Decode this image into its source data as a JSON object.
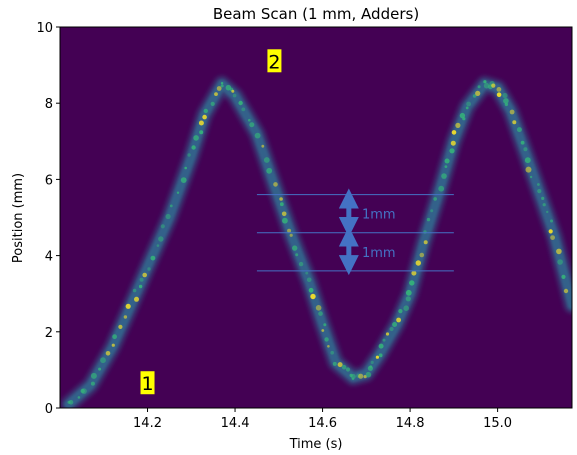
{
  "chart_data": {
    "type": "heatmap",
    "title": "Beam Scan (1 mm, Adders)",
    "xlabel": "Time (s)",
    "ylabel": "Position (mm)",
    "xlim": [
      14.0,
      15.17
    ],
    "ylim": [
      0,
      10
    ],
    "x_ticks": [
      {
        "value": 14.2,
        "label": "14.2"
      },
      {
        "value": 14.4,
        "label": "14.4"
      },
      {
        "value": 14.6,
        "label": "14.6"
      },
      {
        "value": 14.8,
        "label": "14.8"
      },
      {
        "value": 15.0,
        "label": "15.0"
      }
    ],
    "y_ticks": [
      {
        "value": 0,
        "label": "0"
      },
      {
        "value": 2,
        "label": "2"
      },
      {
        "value": 4,
        "label": "4"
      },
      {
        "value": 6,
        "label": "6"
      },
      {
        "value": 8,
        "label": "8"
      },
      {
        "value": 10,
        "label": "10"
      }
    ],
    "colormap": [
      "#440154",
      "#31688e",
      "#35b779",
      "#fde725"
    ],
    "background_color": "#440154",
    "trace_points": [
      {
        "x": 14.02,
        "y": 0.1
      },
      {
        "x": 14.07,
        "y": 0.6
      },
      {
        "x": 14.12,
        "y": 1.6
      },
      {
        "x": 14.17,
        "y": 2.9
      },
      {
        "x": 14.2,
        "y": 3.7
      },
      {
        "x": 14.25,
        "y": 5.0
      },
      {
        "x": 14.3,
        "y": 6.6
      },
      {
        "x": 14.33,
        "y": 7.7
      },
      {
        "x": 14.37,
        "y": 8.5
      },
      {
        "x": 14.4,
        "y": 8.2
      },
      {
        "x": 14.45,
        "y": 7.2
      },
      {
        "x": 14.5,
        "y": 5.5
      },
      {
        "x": 14.53,
        "y": 4.5
      },
      {
        "x": 14.57,
        "y": 3.3
      },
      {
        "x": 14.6,
        "y": 2.2
      },
      {
        "x": 14.63,
        "y": 1.2
      },
      {
        "x": 14.67,
        "y": 0.8
      },
      {
        "x": 14.7,
        "y": 0.9
      },
      {
        "x": 14.73,
        "y": 1.4
      },
      {
        "x": 14.77,
        "y": 2.2
      },
      {
        "x": 14.8,
        "y": 3.0
      },
      {
        "x": 14.83,
        "y": 4.3
      },
      {
        "x": 14.87,
        "y": 5.8
      },
      {
        "x": 14.9,
        "y": 7.0
      },
      {
        "x": 14.93,
        "y": 7.9
      },
      {
        "x": 14.97,
        "y": 8.5
      },
      {
        "x": 15.0,
        "y": 8.4
      },
      {
        "x": 15.03,
        "y": 7.8
      },
      {
        "x": 15.07,
        "y": 6.5
      },
      {
        "x": 15.1,
        "y": 5.5
      },
      {
        "x": 15.13,
        "y": 4.5
      },
      {
        "x": 15.17,
        "y": 2.7
      }
    ],
    "hlines": [
      {
        "y": 3.6,
        "x_start": 14.45,
        "x_end": 14.9,
        "color": "#4472c4"
      },
      {
        "y": 4.6,
        "x_start": 14.45,
        "x_end": 14.9,
        "color": "#4472c4"
      },
      {
        "y": 5.6,
        "x_start": 14.45,
        "x_end": 14.9,
        "color": "#4472c4"
      }
    ],
    "annotations": [
      {
        "text": "1mm",
        "x": 14.69,
        "y": 5.1,
        "arrow_from": 4.75,
        "arrow_to": 5.5,
        "arrow_x": 14.66,
        "color": "#4472c4"
      },
      {
        "text": "1mm",
        "x": 14.69,
        "y": 4.1,
        "arrow_from": 3.75,
        "arrow_to": 4.5,
        "arrow_x": 14.66,
        "color": "#4472c4"
      }
    ],
    "markers": [
      {
        "text": "1",
        "x": 14.2,
        "y": 0.65,
        "background": "#ffff00"
      },
      {
        "text": "2",
        "x": 14.49,
        "y": 9.1,
        "background": "#ffff00"
      }
    ]
  }
}
